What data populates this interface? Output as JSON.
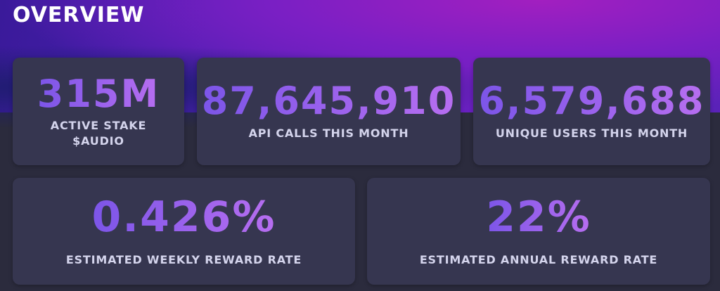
{
  "header": {
    "title": "OVERVIEW"
  },
  "cards": [
    {
      "value": "315M",
      "label": "ACTIVE STAKE $AUDIO"
    },
    {
      "value": "87,645,910",
      "label": "API CALLS THIS MONTH"
    },
    {
      "value": "6,579,688",
      "label": "UNIQUE USERS THIS MONTH"
    },
    {
      "value": "0.426%",
      "label": "ESTIMATED WEEKLY REWARD RATE"
    },
    {
      "value": "22%",
      "label": "ESTIMATED ANNUAL REWARD RATE"
    }
  ]
}
